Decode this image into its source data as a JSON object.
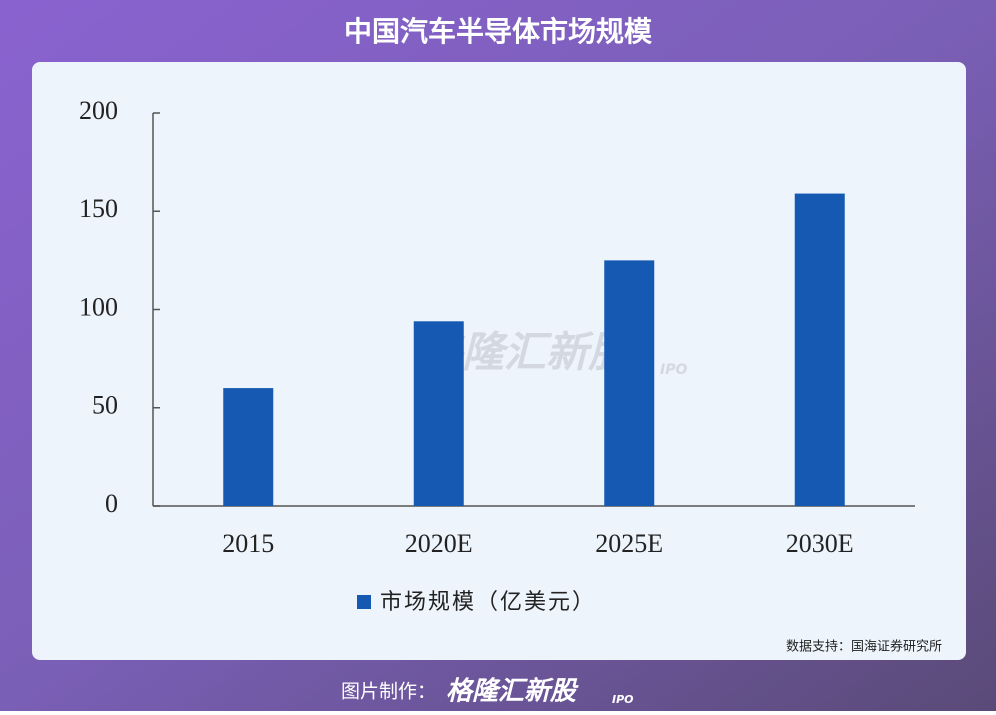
{
  "chart_data": {
    "type": "bar",
    "title": "中国汽车半导体市场规模",
    "categories": [
      "2015",
      "2020E",
      "2025E",
      "2030E"
    ],
    "series": [
      {
        "name": "市场规模（亿美元）",
        "color": "#1559b2",
        "values": [
          60,
          94,
          125,
          159
        ]
      }
    ],
    "ylim": [
      0,
      200
    ],
    "yticks": [
      0,
      50,
      100,
      150,
      200
    ],
    "grid": false,
    "legend": "bottom",
    "source": "数据支持：国海证券研究所"
  },
  "watermark": {
    "text": "格隆汇新股",
    "sub": "IPO"
  },
  "footer": {
    "label": "图片制作：",
    "brand": "格隆汇新股",
    "brand_sub": "IPO"
  }
}
